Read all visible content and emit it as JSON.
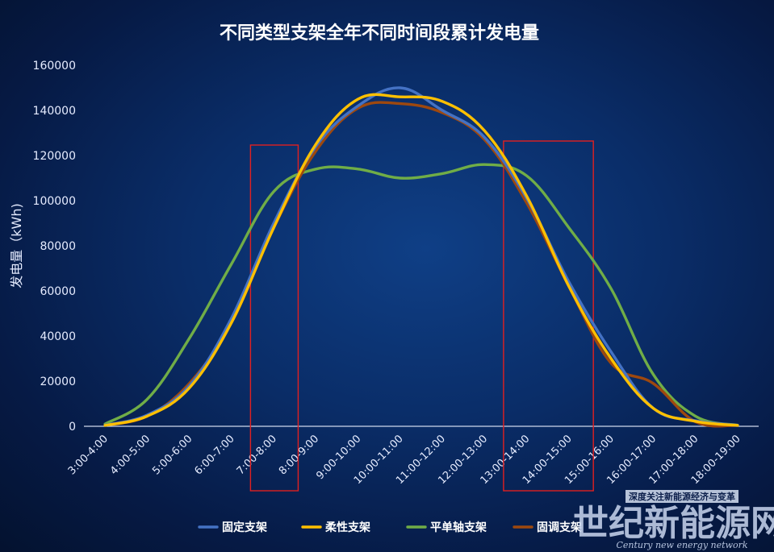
{
  "chart_data": {
    "type": "line",
    "title": "不同类型支架全年不同时间段累计发电量",
    "ylabel": "发电量（kWh)",
    "xlabel": "",
    "ylim": [
      0,
      160000
    ],
    "yticks": [
      0,
      20000,
      40000,
      60000,
      80000,
      100000,
      120000,
      140000,
      160000
    ],
    "categories": [
      "3:00-4:00",
      "4:00-5:00",
      "5:00-6:00",
      "6:00-7:00",
      "7:00-8:00",
      "8:00-9:00",
      "9:00-10:00",
      "10:00-11:00",
      "11:00-12:00",
      "12:00-13:00",
      "13:00-14:00",
      "14:00-15:00",
      "15:00-16:00",
      "16:00-17:00",
      "17:00-18:00",
      "18:00-19:00"
    ],
    "series": [
      {
        "name": "固定支架",
        "color": "#4472c4",
        "values": [
          500,
          5000,
          18000,
          48000,
          90000,
          124000,
          142000,
          150000,
          140000,
          128000,
          101000,
          64000,
          33000,
          8000,
          2500,
          500
        ]
      },
      {
        "name": "柔性支架",
        "color": "#ffc000",
        "values": [
          400,
          4500,
          17000,
          46000,
          88000,
          125000,
          145000,
          146000,
          144000,
          131000,
          102000,
          62000,
          30000,
          8000,
          2200,
          400
        ]
      },
      {
        "name": "平单轴支架",
        "color": "#70ad47",
        "values": [
          1000,
          12000,
          39000,
          72000,
          104000,
          114000,
          114000,
          110000,
          112000,
          116000,
          111000,
          88000,
          61000,
          23000,
          4500,
          500
        ]
      },
      {
        "name": "固调支架",
        "color": "#9e480e",
        "values": [
          400,
          4500,
          19000,
          46000,
          88000,
          122000,
          141000,
          143000,
          139000,
          127000,
          99000,
          62000,
          28000,
          19000,
          2000,
          400
        ]
      }
    ],
    "highlights": [
      {
        "from": "7:00-8:00",
        "to": "8:00-9:00",
        "color": "#e02020"
      },
      {
        "from": "13:00-14:00",
        "to": "15:00-16:00",
        "color": "#e02020"
      }
    ],
    "legend_position": "bottom",
    "grid": false
  },
  "watermark": {
    "tagline": "深度关注新能源经济与变革",
    "name": "世纪新能源网",
    "subtitle": "Century new energy network"
  }
}
